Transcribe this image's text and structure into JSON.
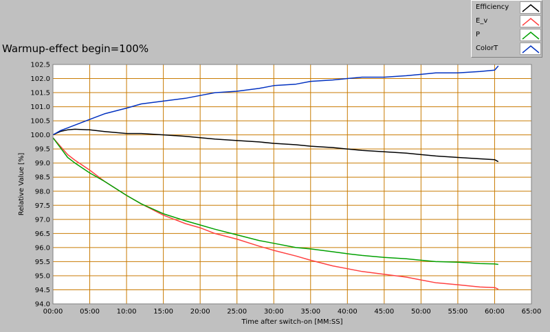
{
  "chart_data": {
    "type": "line",
    "title": "Warmup-effect begin=100%",
    "xlabel": "Time after switch-on [MM:SS]",
    "ylabel": "Relative Value [%]",
    "x_unit": "minutes",
    "xlim": [
      0,
      65
    ],
    "ylim": [
      94.0,
      102.5
    ],
    "x_ticks": [
      "00:00",
      "05:00",
      "10:00",
      "15:00",
      "20:00",
      "25:00",
      "30:00",
      "35:00",
      "40:00",
      "45:00",
      "50:00",
      "55:00",
      "60:00",
      "65:00"
    ],
    "y_ticks": [
      "94.0",
      "94.5",
      "95.0",
      "95.5",
      "96.0",
      "96.5",
      "97.0",
      "97.5",
      "98.0",
      "98.5",
      "99.0",
      "99.5",
      "100.0",
      "100.5",
      "101.0",
      "101.5",
      "102.0",
      "102.5"
    ],
    "grid": true,
    "legend_position": "top-right",
    "colors": {
      "plot_bg": "#ffffff",
      "grid": "#c87a00",
      "window_bg": "#c0c0c0"
    },
    "series": [
      {
        "name": "Efficiency",
        "color": "#000000",
        "x": [
          0,
          1,
          2,
          3,
          5,
          7,
          10,
          12,
          15,
          18,
          20,
          22,
          25,
          28,
          30,
          33,
          35,
          38,
          40,
          42,
          45,
          48,
          50,
          52,
          55,
          58,
          60,
          60.5
        ],
        "values": [
          100.0,
          100.12,
          100.18,
          100.2,
          100.18,
          100.12,
          100.05,
          100.05,
          100.0,
          99.95,
          99.9,
          99.85,
          99.8,
          99.75,
          99.7,
          99.65,
          99.6,
          99.55,
          99.5,
          99.45,
          99.4,
          99.35,
          99.3,
          99.25,
          99.2,
          99.15,
          99.12,
          99.05
        ]
      },
      {
        "name": "E_v",
        "color": "#ff4040",
        "x": [
          0,
          1,
          2,
          3,
          5,
          7,
          10,
          12,
          15,
          18,
          20,
          22,
          25,
          28,
          30,
          33,
          35,
          38,
          40,
          42,
          45,
          48,
          50,
          52,
          55,
          58,
          60,
          60.5
        ],
        "values": [
          99.9,
          99.6,
          99.3,
          99.1,
          98.75,
          98.35,
          97.85,
          97.55,
          97.15,
          96.85,
          96.7,
          96.5,
          96.3,
          96.05,
          95.9,
          95.7,
          95.55,
          95.35,
          95.25,
          95.15,
          95.05,
          94.95,
          94.85,
          94.75,
          94.68,
          94.6,
          94.58,
          94.52
        ]
      },
      {
        "name": "P",
        "color": "#00a000",
        "x": [
          0,
          1,
          2,
          3,
          5,
          7,
          10,
          12,
          15,
          18,
          20,
          22,
          25,
          28,
          30,
          33,
          35,
          38,
          40,
          42,
          45,
          48,
          50,
          52,
          55,
          58,
          60,
          60.5
        ],
        "values": [
          99.9,
          99.55,
          99.2,
          99.0,
          98.65,
          98.35,
          97.85,
          97.55,
          97.2,
          96.95,
          96.8,
          96.65,
          96.45,
          96.25,
          96.15,
          96.0,
          95.95,
          95.85,
          95.78,
          95.72,
          95.65,
          95.6,
          95.55,
          95.5,
          95.48,
          95.43,
          95.42,
          95.4
        ]
      },
      {
        "name": "ColorT",
        "color": "#0030c0",
        "x": [
          0,
          1,
          2,
          3,
          5,
          7,
          10,
          12,
          15,
          18,
          20,
          22,
          25,
          28,
          30,
          33,
          35,
          38,
          40,
          42,
          45,
          48,
          50,
          52,
          55,
          58,
          60,
          60.5
        ],
        "values": [
          100.0,
          100.15,
          100.25,
          100.35,
          100.55,
          100.75,
          100.95,
          101.1,
          101.2,
          101.3,
          101.4,
          101.5,
          101.55,
          101.65,
          101.75,
          101.8,
          101.9,
          101.95,
          102.0,
          102.05,
          102.05,
          102.1,
          102.15,
          102.2,
          102.2,
          102.25,
          102.3,
          102.45
        ]
      }
    ]
  }
}
